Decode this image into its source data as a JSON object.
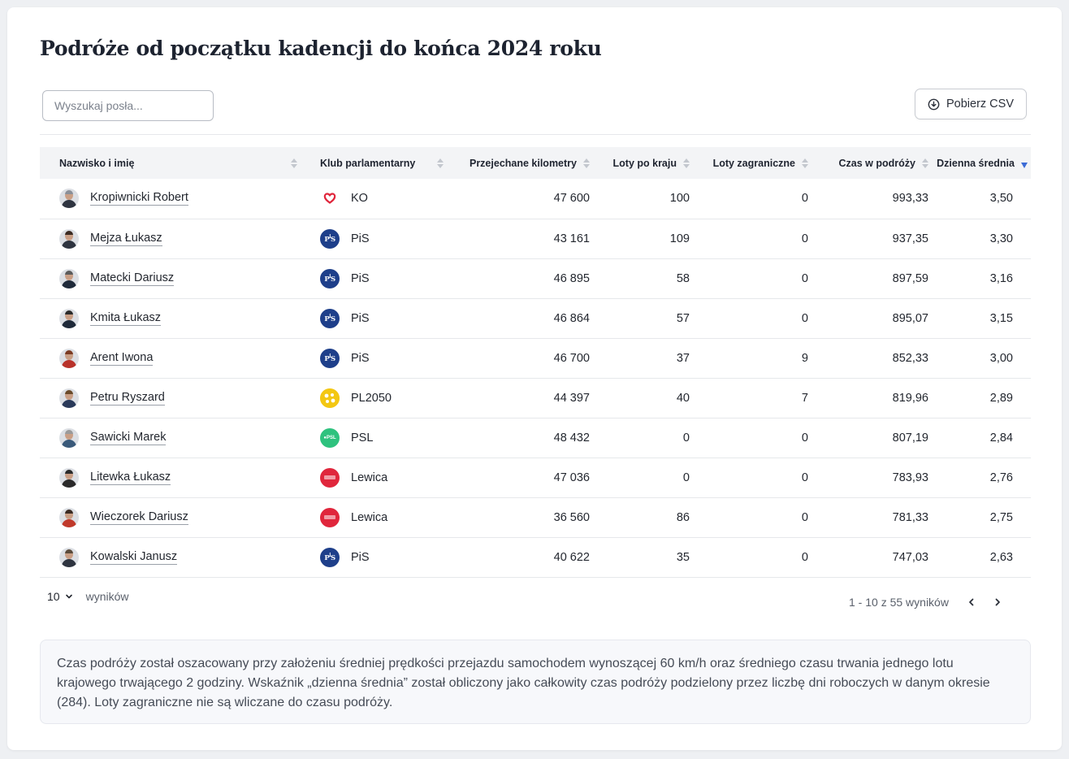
{
  "title": "Podróże od początku kadencji do końca 2024 roku",
  "search": {
    "placeholder": "Wyszukaj posła..."
  },
  "csv_button": {
    "label": "Pobierz CSV",
    "icon": "download-circle-icon"
  },
  "table": {
    "columns": [
      {
        "label": "Nazwisko i imię",
        "sortable": true
      },
      {
        "label": "Klub parlamentarny",
        "sortable": true
      },
      {
        "label": "Przejechane kilometry",
        "sortable": true
      },
      {
        "label": "Loty po kraju",
        "sortable": true
      },
      {
        "label": "Loty zagraniczne",
        "sortable": true
      },
      {
        "label": "Czas w podróży",
        "sortable": true
      },
      {
        "label": "Dzienna średnia",
        "sortable": true,
        "sorted": "desc"
      }
    ],
    "rows": [
      {
        "name": "Kropiwnicki Robert",
        "club": "KO",
        "club_logo": "ko",
        "km": "47 600",
        "domestic": "100",
        "foreign": "0",
        "time": "993,33",
        "daily": "3,50"
      },
      {
        "name": "Mejza Łukasz",
        "club": "PiS",
        "club_logo": "pis",
        "km": "43 161",
        "domestic": "109",
        "foreign": "0",
        "time": "937,35",
        "daily": "3,30"
      },
      {
        "name": "Matecki Dariusz",
        "club": "PiS",
        "club_logo": "pis",
        "km": "46 895",
        "domestic": "58",
        "foreign": "0",
        "time": "897,59",
        "daily": "3,16"
      },
      {
        "name": "Kmita Łukasz",
        "club": "PiS",
        "club_logo": "pis",
        "km": "46 864",
        "domestic": "57",
        "foreign": "0",
        "time": "895,07",
        "daily": "3,15"
      },
      {
        "name": "Arent Iwona",
        "club": "PiS",
        "club_logo": "pis",
        "km": "46 700",
        "domestic": "37",
        "foreign": "9",
        "time": "852,33",
        "daily": "3,00"
      },
      {
        "name": "Petru Ryszard",
        "club": "PL2050",
        "club_logo": "pl2050",
        "km": "44 397",
        "domestic": "40",
        "foreign": "7",
        "time": "819,96",
        "daily": "2,89"
      },
      {
        "name": "Sawicki Marek",
        "club": "PSL",
        "club_logo": "psl",
        "km": "48 432",
        "domestic": "0",
        "foreign": "0",
        "time": "807,19",
        "daily": "2,84"
      },
      {
        "name": "Litewka Łukasz",
        "club": "Lewica",
        "club_logo": "lewica",
        "km": "47 036",
        "domestic": "0",
        "foreign": "0",
        "time": "783,93",
        "daily": "2,76"
      },
      {
        "name": "Wieczorek Dariusz",
        "club": "Lewica",
        "club_logo": "lewica",
        "km": "36 560",
        "domestic": "86",
        "foreign": "0",
        "time": "781,33",
        "daily": "2,75"
      },
      {
        "name": "Kowalski Janusz",
        "club": "PiS",
        "club_logo": "pis",
        "km": "40 622",
        "domestic": "35",
        "foreign": "0",
        "time": "747,03",
        "daily": "2,63"
      }
    ]
  },
  "pagination": {
    "page_size": "10",
    "page_size_suffix": "wyników",
    "range_text": "1 - 10 z 55 wyników"
  },
  "note": "Czas podróży został oszacowany przy założeniu średniej prędkości przejazdu samochodem wynoszącej 60 km/h oraz średniego czasu trwania jednego lotu krajowego trwającego 2 godziny. Wskaźnik „dzienna średnia” został obliczony jako całkowity czas podróży podzielony przez liczbę dni roboczych w danym okresie (284). Loty zagraniczne nie są wliczane do czasu podróży.",
  "colors": {
    "accent_sort": "#3b6bd6",
    "header_bg": "#f3f4f6",
    "ko": "#e0263c",
    "pis": "#1e3f8a",
    "pl2050": "#f3c713",
    "psl": "#2ec27e",
    "lewica": "#e0263c"
  }
}
